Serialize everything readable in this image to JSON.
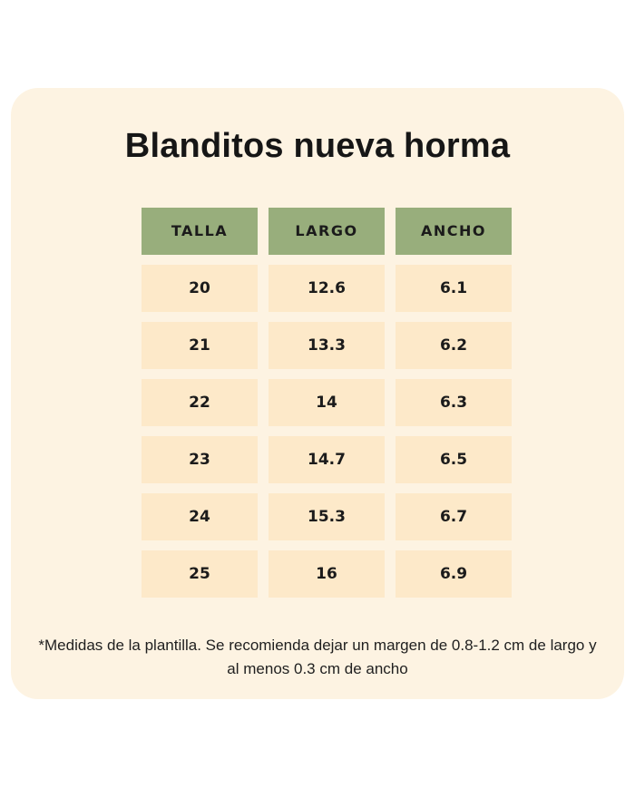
{
  "title": "Blanditos nueva horma",
  "table": {
    "headers": [
      "TALLA",
      "LARGO",
      "ANCHO"
    ],
    "rows": [
      [
        "20",
        "12.6",
        "6.1"
      ],
      [
        "21",
        "13.3",
        "6.2"
      ],
      [
        "22",
        "14",
        "6.3"
      ],
      [
        "23",
        "14.7",
        "6.5"
      ],
      [
        "24",
        "15.3",
        "6.7"
      ],
      [
        "25",
        "16",
        "6.9"
      ]
    ]
  },
  "footnote": "*Medidas de la plantilla. Se recomienda dejar un margen de 0.8-1.2 cm de largo y al menos 0.3 cm de ancho",
  "colors": {
    "page_bg": "#ffffff",
    "card_bg": "#fdf3e2",
    "cell_bg": "#fde9c9",
    "header_bg": "#98ae7c",
    "text": "#1b1b1b"
  },
  "chart_data": {
    "type": "table",
    "title": "Blanditos nueva horma",
    "columns": [
      "TALLA",
      "LARGO",
      "ANCHO"
    ],
    "rows": [
      [
        20,
        12.6,
        6.1
      ],
      [
        21,
        13.3,
        6.2
      ],
      [
        22,
        14,
        6.3
      ],
      [
        23,
        14.7,
        6.5
      ],
      [
        24,
        15.3,
        6.7
      ],
      [
        25,
        16,
        6.9
      ]
    ],
    "note": "*Medidas de la plantilla. Se recomienda dejar un margen de 0.8-1.2 cm de largo y al menos 0.3 cm de ancho"
  }
}
